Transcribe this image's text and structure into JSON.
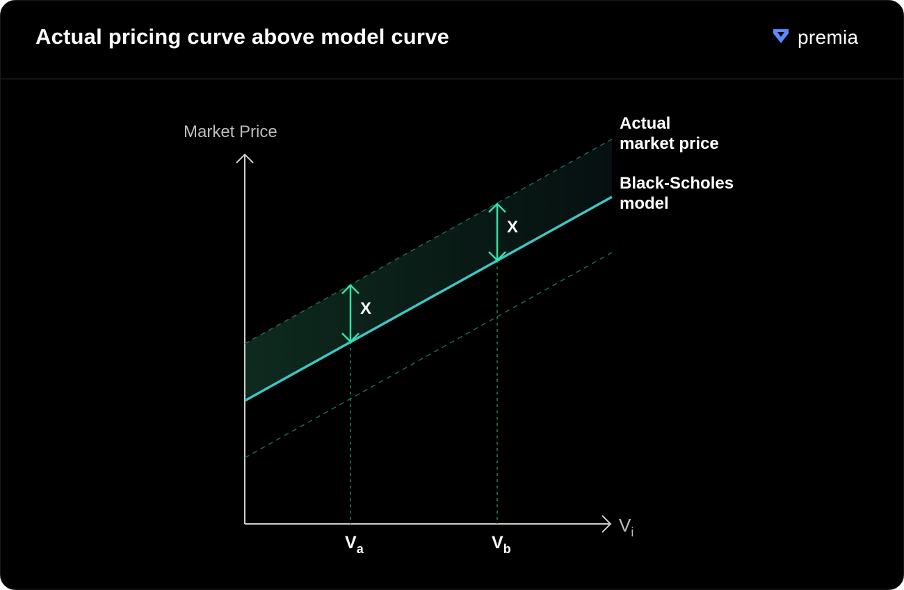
{
  "header": {
    "title": "Actual pricing curve above model curve",
    "brand_name": "premia",
    "brand_icon": "premia-logo-icon"
  },
  "axes": {
    "y_label": "Market Price",
    "x_label_main": "V",
    "x_label_sub": "i",
    "tick_a_main": "V",
    "tick_a_sub": "a",
    "tick_b_main": "V",
    "tick_b_sub": "b"
  },
  "curves": {
    "actual_line1": "Actual",
    "actual_line2": "market price",
    "model_line1": "Black-Scholes",
    "model_line2": "model"
  },
  "gap_label_a": "X",
  "gap_label_b": "X",
  "colors": {
    "background": "#000000",
    "model_line": "#3ec6c6",
    "gap_arrow": "#2ee6a6",
    "dashed": "#1f6b5a",
    "band": "#0d2a20",
    "brand_icon": "#5b8cff"
  }
}
